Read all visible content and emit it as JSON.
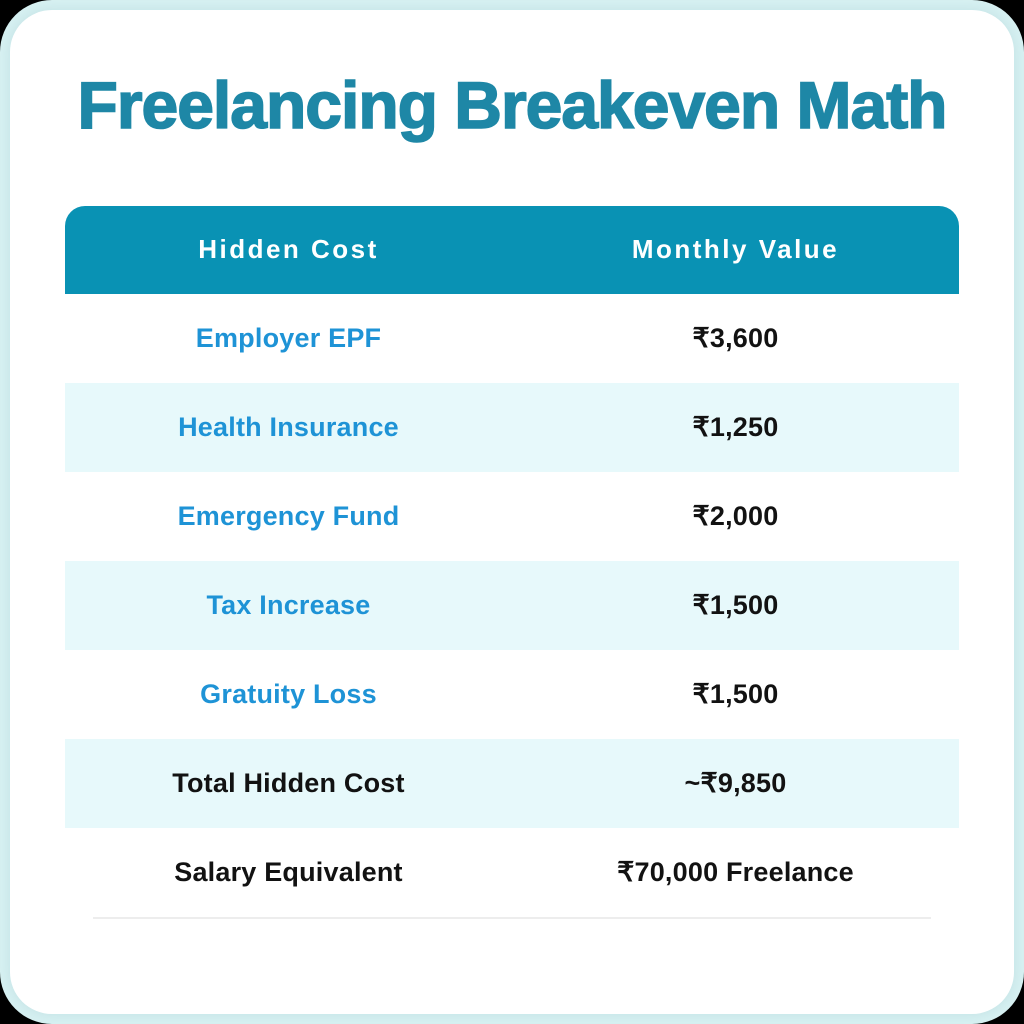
{
  "page": {
    "title": "Freelancing Breakeven Math"
  },
  "colors": {
    "outer_background": "#d7f1f2",
    "card_background": "#ffffff",
    "title_teal": "#1e87a6",
    "header_background": "#0992b4",
    "header_text": "#ffffff",
    "alt_row_background": "#e7f9fb",
    "label_blue": "#1e93d6",
    "value_black": "#121212"
  },
  "table": {
    "columns": [
      "Hidden Cost",
      "Monthly Value"
    ],
    "rows": [
      {
        "label": "Employer EPF",
        "value": "₹3,600",
        "emphasis": false,
        "alt": false
      },
      {
        "label": "Health Insurance",
        "value": "₹1,250",
        "emphasis": false,
        "alt": true
      },
      {
        "label": "Emergency Fund",
        "value": "₹2,000",
        "emphasis": false,
        "alt": false
      },
      {
        "label": "Tax Increase",
        "value": "₹1,500",
        "emphasis": false,
        "alt": true
      },
      {
        "label": "Gratuity Loss",
        "value": "₹1,500",
        "emphasis": false,
        "alt": false
      },
      {
        "label": "Total Hidden Cost",
        "value": "~₹9,850",
        "emphasis": true,
        "alt": true
      },
      {
        "label": "Salary Equivalent",
        "value": "₹70,000 Freelance",
        "emphasis": true,
        "alt": false
      }
    ]
  },
  "chart_data": {
    "type": "table",
    "title": "Freelancing Breakeven Math",
    "columns": [
      "Hidden Cost",
      "Monthly Value"
    ],
    "rows": [
      [
        "Employer EPF",
        "₹3,600"
      ],
      [
        "Health Insurance",
        "₹1,250"
      ],
      [
        "Emergency Fund",
        "₹2,000"
      ],
      [
        "Tax Increase",
        "₹1,500"
      ],
      [
        "Gratuity Loss",
        "₹1,500"
      ],
      [
        "Total Hidden Cost",
        "~₹9,850"
      ],
      [
        "Salary Equivalent",
        "₹70,000 Freelance"
      ]
    ],
    "monthly_values_inr": [
      3600,
      1250,
      2000,
      1500,
      1500,
      9850,
      70000
    ]
  }
}
